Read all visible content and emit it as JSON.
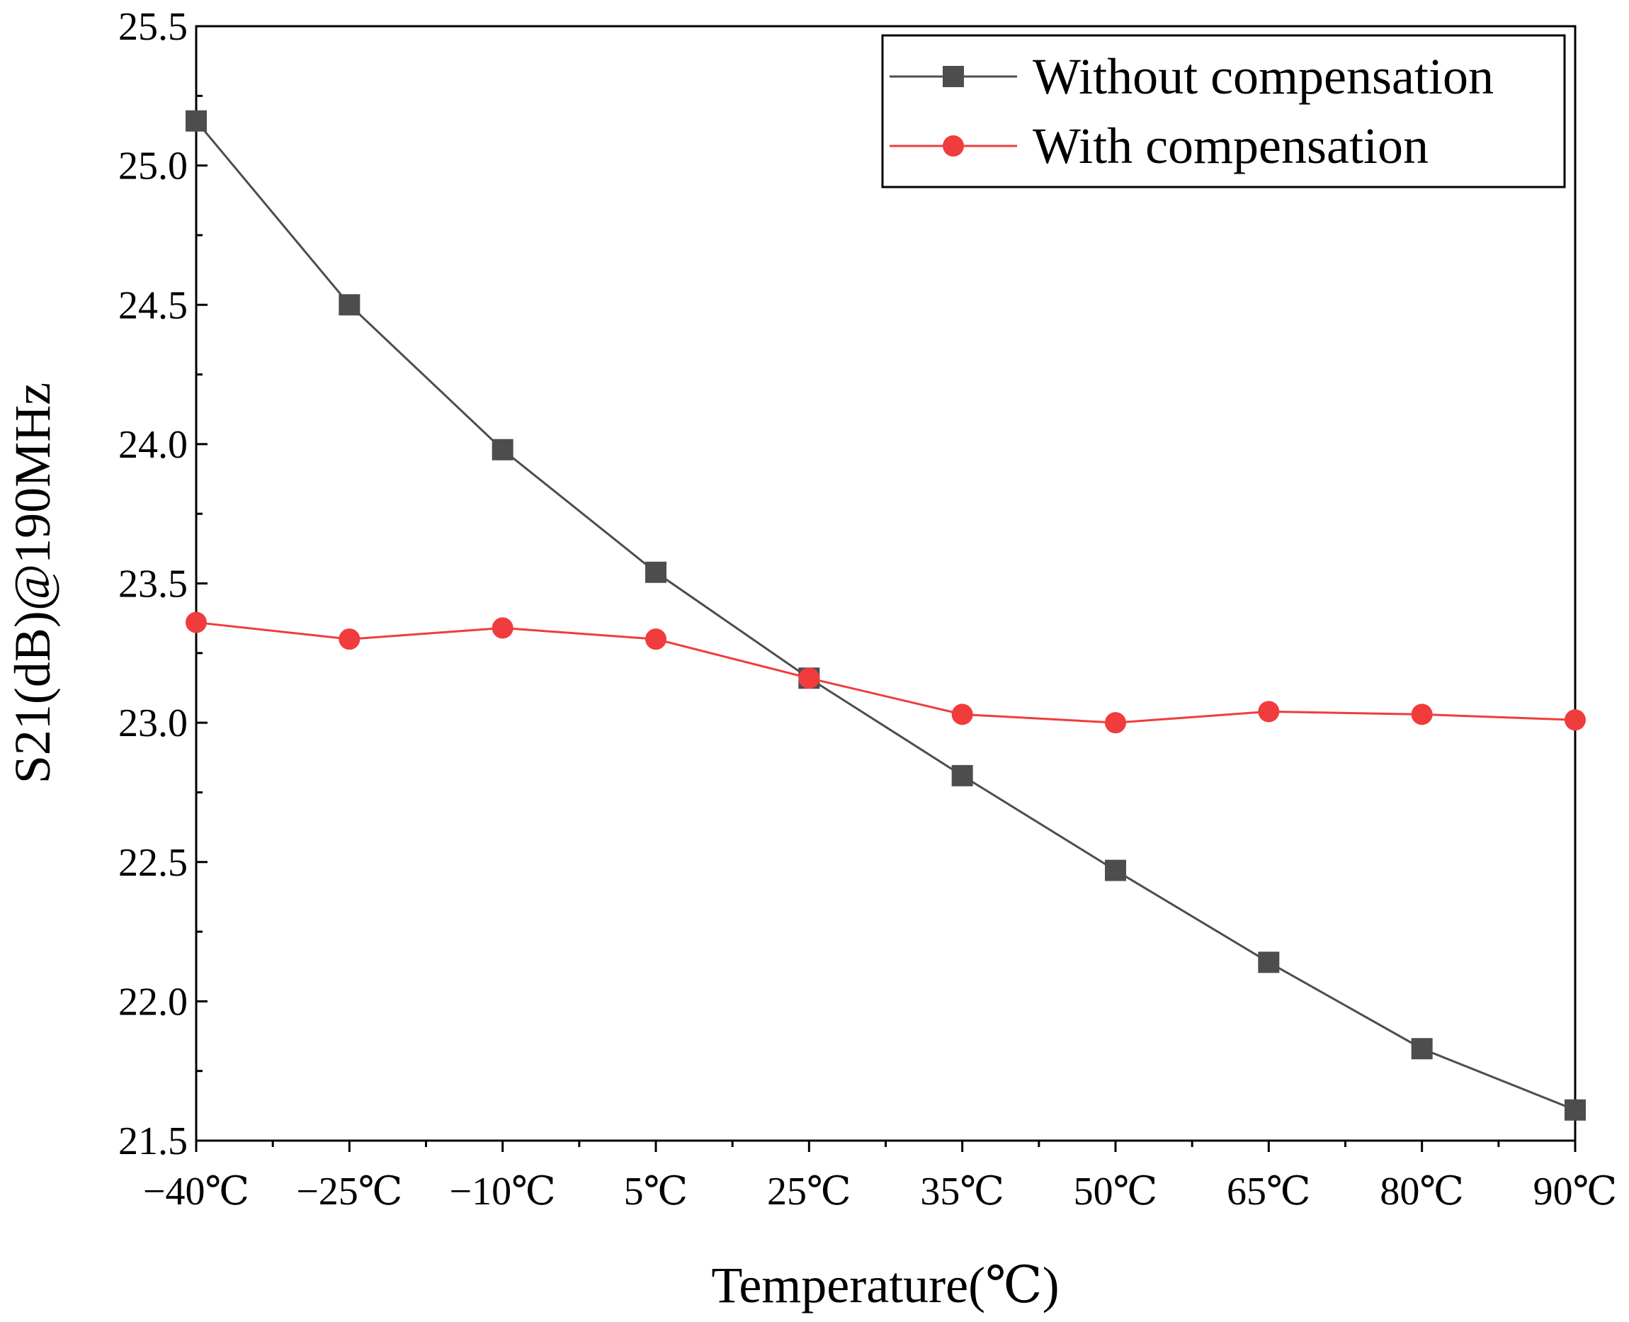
{
  "chart_data": {
    "type": "line",
    "title": "",
    "xlabel": "Temperature(℃)",
    "ylabel": "S21(dB)@190MHz",
    "categories": [
      "−40℃",
      "−25℃",
      "−10℃",
      "5℃",
      "25℃",
      "35℃",
      "50℃",
      "65℃",
      "80℃",
      "90℃"
    ],
    "ylim": [
      21.5,
      25.5
    ],
    "yticks": [
      "21.5",
      "22.0",
      "22.5",
      "23.0",
      "23.5",
      "24.0",
      "24.5",
      "25.0",
      "25.5"
    ],
    "yticks_values": [
      21.5,
      22.0,
      22.5,
      23.0,
      23.5,
      24.0,
      24.5,
      25.0,
      25.5
    ],
    "legend_position": "top-right",
    "series": [
      {
        "name": "Without compensation",
        "color": "#4d4d4d",
        "marker": "square",
        "values": [
          25.16,
          24.5,
          23.98,
          23.54,
          23.16,
          22.81,
          22.47,
          22.14,
          21.83,
          21.61
        ]
      },
      {
        "name": "With compensation",
        "color": "#f03c3c",
        "marker": "circle",
        "values": [
          23.36,
          23.3,
          23.34,
          23.3,
          23.16,
          23.03,
          23.0,
          23.04,
          23.03,
          23.01
        ]
      }
    ]
  }
}
